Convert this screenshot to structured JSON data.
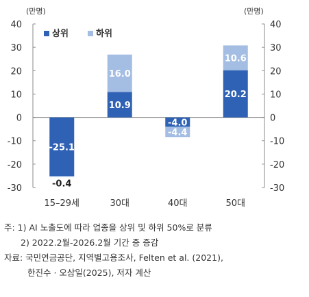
{
  "chart_data": {
    "type": "bar",
    "stacked": true,
    "categories": [
      "15–29세",
      "30대",
      "40대",
      "50대"
    ],
    "series": [
      {
        "name": "상위",
        "color": "#2f62b4",
        "values": [
          -25.1,
          10.9,
          -4.0,
          20.2
        ]
      },
      {
        "name": "하위",
        "color": "#a3bde3",
        "values": [
          -0.4,
          16.0,
          -4.4,
          10.6
        ]
      }
    ],
    "y_unit_left": "(만명)",
    "y_unit_right": "(만명)",
    "ylim": [
      -30,
      40
    ],
    "yticks": [
      40,
      30,
      20,
      10,
      0,
      -10,
      -20,
      -30
    ],
    "ytick_labels": [
      "40",
      "30",
      "20",
      "10",
      "0",
      "-10",
      "-20",
      "-30"
    ],
    "data_labels": {
      "상위": [
        "-25.1",
        "10.9",
        "-4.0",
        "20.2"
      ],
      "하위": [
        "-0.4",
        "16.0",
        "-4.4",
        "10.6"
      ]
    },
    "legend_position": "top-left",
    "grid": false
  },
  "notes": {
    "line1": "주: 1) AI 노출도에 따라 업종을 상위 및 하위 50%로 분류",
    "line2": "2) 2022.2월-2026.2월 기간 중 증감",
    "line3": "자료: 국민연금공단, 지역별고용조사, Felten et al. (2021),",
    "line4": "한진수 · 오삼일(2025), 저자 계산"
  }
}
